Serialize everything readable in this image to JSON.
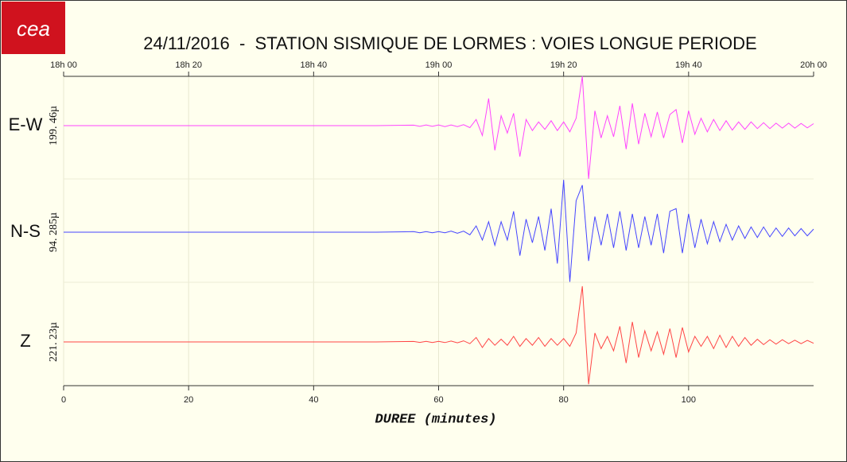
{
  "logo": "cea",
  "chart_data": {
    "type": "line",
    "title": "24/11/2016  -  STATION SISMIQUE DE LORMES : VOIES LONGUE PERIODE",
    "xlabel": "DUREE (minutes)",
    "xlim": [
      0,
      120
    ],
    "xticks": [
      0,
      20,
      40,
      60,
      80,
      100
    ],
    "x2ticks": [
      {
        "value": 0,
        "label": "18h 00"
      },
      {
        "value": 20,
        "label": "18h 20"
      },
      {
        "value": 40,
        "label": "18h 40"
      },
      {
        "value": 60,
        "label": "19h 00"
      },
      {
        "value": 80,
        "label": "19h 20"
      },
      {
        "value": 100,
        "label": "19h 40"
      },
      {
        "value": 120,
        "label": "20h 00"
      }
    ],
    "grid": true,
    "x": [
      0,
      10,
      20,
      30,
      40,
      50,
      56,
      57,
      58,
      59,
      60,
      61,
      62,
      63,
      64,
      65,
      66,
      67,
      68,
      69,
      70,
      71,
      72,
      73,
      74,
      75,
      76,
      77,
      78,
      79,
      80,
      81,
      82,
      83,
      84,
      85,
      86,
      87,
      88,
      89,
      90,
      91,
      92,
      93,
      94,
      95,
      96,
      97,
      98,
      99,
      100,
      101,
      102,
      103,
      104,
      105,
      106,
      107,
      108,
      109,
      110,
      111,
      112,
      113,
      114,
      115,
      116,
      117,
      118,
      119,
      120
    ],
    "series": [
      {
        "name": "E-W",
        "color": "#ff44ff",
        "scale": {
          "value": 199.46,
          "label": "199. 46µ"
        },
        "values": [
          0,
          0,
          0,
          0,
          0,
          0,
          2,
          -3,
          3,
          -3,
          3,
          -4,
          3,
          -4,
          4,
          -8,
          25,
          -40,
          110,
          -100,
          40,
          -30,
          50,
          -125,
          25,
          -20,
          15,
          -15,
          20,
          -20,
          15,
          -25,
          30,
          200,
          -215,
          60,
          -50,
          40,
          -45,
          80,
          -95,
          90,
          -75,
          50,
          -45,
          55,
          -50,
          45,
          65,
          -70,
          60,
          -35,
          30,
          -25,
          25,
          -20,
          20,
          -18,
          15,
          -15,
          15,
          -12,
          12,
          -12,
          10,
          -10,
          10,
          -10,
          9,
          -9,
          8
        ]
      },
      {
        "name": "N-S",
        "color": "#4444ff",
        "scale": {
          "value": 94.285,
          "label": "94. 285µ"
        },
        "values": [
          0,
          0,
          0,
          0,
          0,
          0,
          1,
          -1,
          1,
          -1,
          1,
          -1,
          2,
          -2,
          2,
          -5,
          12,
          -15,
          20,
          -25,
          20,
          -15,
          40,
          -45,
          25,
          -20,
          30,
          -35,
          45,
          -60,
          100,
          -95,
          60,
          90,
          -55,
          30,
          -25,
          35,
          -30,
          40,
          -35,
          35,
          -30,
          30,
          -25,
          35,
          -40,
          40,
          45,
          -40,
          35,
          -30,
          25,
          -22,
          20,
          -18,
          15,
          -15,
          12,
          -12,
          10,
          -10,
          10,
          -9,
          8,
          -8,
          8,
          -7,
          7,
          -7,
          6
        ]
      },
      {
        "name": "Z",
        "color": "#ff4444",
        "scale": {
          "value": 221.23,
          "label": "221. 23µ"
        },
        "values": [
          0,
          0,
          0,
          0,
          0,
          0,
          2,
          -2,
          3,
          -3,
          3,
          -3,
          4,
          -4,
          5,
          -8,
          20,
          -25,
          15,
          -15,
          12,
          -15,
          25,
          -20,
          15,
          -15,
          20,
          -20,
          15,
          -15,
          15,
          -20,
          40,
          250,
          -190,
          40,
          -30,
          25,
          -40,
          70,
          -95,
          90,
          -70,
          50,
          -40,
          45,
          -55,
          60,
          -70,
          65,
          -45,
          25,
          -20,
          25,
          -30,
          30,
          -25,
          25,
          -20,
          20,
          -15,
          12,
          -12,
          10,
          -10,
          10,
          -8,
          8,
          -8,
          7,
          -6
        ]
      }
    ]
  }
}
